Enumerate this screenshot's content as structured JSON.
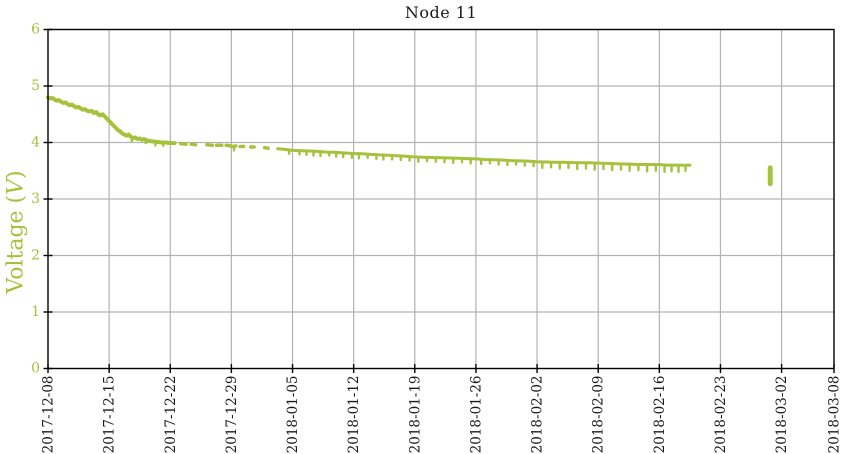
{
  "window": {
    "title": "Node 11"
  },
  "chart_data": {
    "type": "line",
    "title": "Node 11",
    "xlabel": "",
    "ylabel": "Voltage (V)",
    "ylabel_word": "Voltage",
    "ylabel_var": "V",
    "ylim": [
      0,
      6
    ],
    "yticks": [
      0,
      1,
      2,
      3,
      4,
      5,
      6
    ],
    "x_start_date": "2017-12-08",
    "x_end_date": "2018-03-08",
    "x_range_days": 90,
    "xticks": [
      {
        "label": "2017-12-08",
        "day": 0
      },
      {
        "label": "2017-12-15",
        "day": 7
      },
      {
        "label": "2017-12-22",
        "day": 14
      },
      {
        "label": "2017-12-29",
        "day": 21
      },
      {
        "label": "2018-01-05",
        "day": 28
      },
      {
        "label": "2018-01-12",
        "day": 35
      },
      {
        "label": "2018-01-19",
        "day": 42
      },
      {
        "label": "2018-01-26",
        "day": 49
      },
      {
        "label": "2018-02-02",
        "day": 56
      },
      {
        "label": "2018-02-09",
        "day": 63
      },
      {
        "label": "2018-02-16",
        "day": 70
      },
      {
        "label": "2018-02-23",
        "day": 77
      },
      {
        "label": "2018-03-02",
        "day": 84
      },
      {
        "label": "2018-03-08",
        "day": 90
      }
    ],
    "grid": true,
    "legend_position": "none",
    "line_color": "#a6c23c",
    "grid_color": "#b3b3b3",
    "axis_color": "#000000",
    "title_color": "#1a1a1a",
    "y_tick_label_color": "#a6c23c",
    "x_tick_label_color": "#1a1a1a",
    "segments": [
      {
        "w": 4,
        "points": [
          [
            0,
            4.8
          ],
          [
            0.25,
            4.78
          ],
          [
            0.5,
            4.79
          ],
          [
            0.75,
            4.76
          ],
          [
            1,
            4.74
          ],
          [
            1.25,
            4.75
          ],
          [
            1.5,
            4.72
          ],
          [
            1.75,
            4.7
          ],
          [
            2,
            4.71
          ],
          [
            2.25,
            4.68
          ],
          [
            2.5,
            4.66
          ],
          [
            2.75,
            4.67
          ],
          [
            3,
            4.64
          ],
          [
            3.25,
            4.62
          ],
          [
            3.5,
            4.63
          ],
          [
            3.75,
            4.6
          ],
          [
            4,
            4.58
          ],
          [
            4.25,
            4.59
          ],
          [
            4.5,
            4.56
          ],
          [
            4.75,
            4.55
          ],
          [
            5,
            4.56
          ],
          [
            5.25,
            4.52
          ],
          [
            5.5,
            4.54
          ],
          [
            5.75,
            4.5
          ],
          [
            6,
            4.48
          ],
          [
            6.25,
            4.5
          ],
          [
            6.5,
            4.46
          ],
          [
            6.75,
            4.42
          ],
          [
            7,
            4.38
          ],
          [
            7.25,
            4.34
          ],
          [
            7.5,
            4.3
          ],
          [
            7.75,
            4.26
          ],
          [
            8,
            4.22
          ],
          [
            8.25,
            4.2
          ],
          [
            8.5,
            4.16
          ],
          [
            8.75,
            4.14
          ],
          [
            9,
            4.12
          ],
          [
            9.25,
            4.14
          ],
          [
            9.5,
            4.1
          ],
          [
            9.75,
            4.08
          ],
          [
            10,
            4.09
          ],
          [
            10.25,
            4.06
          ],
          [
            10.5,
            4.07
          ],
          [
            10.75,
            4.05
          ],
          [
            11,
            4.06
          ],
          [
            11.5,
            4.03
          ],
          [
            12,
            4.02
          ],
          [
            12.5,
            4.01
          ],
          [
            13,
            4.0
          ],
          [
            13.5,
            4.0
          ],
          [
            14,
            3.99
          ],
          [
            14.5,
            3.99
          ]
        ]
      },
      {
        "w": 3.5,
        "points": [
          [
            15.2,
            3.98
          ],
          [
            15.8,
            3.97
          ]
        ]
      },
      {
        "w": 3.5,
        "points": [
          [
            16.4,
            3.97
          ],
          [
            16.9,
            3.96
          ]
        ]
      },
      {
        "w": 3.5,
        "points": [
          [
            18.2,
            3.96
          ],
          [
            18.8,
            3.95
          ]
        ]
      },
      {
        "w": 3.5,
        "points": [
          [
            19.3,
            3.95
          ],
          [
            19.9,
            3.95
          ]
        ]
      },
      {
        "w": 3.5,
        "points": [
          [
            20.4,
            3.95
          ],
          [
            20.9,
            3.94
          ],
          [
            21.2,
            3.93
          ],
          [
            21.5,
            3.94
          ]
        ]
      },
      {
        "w": 3.5,
        "points": [
          [
            22.0,
            3.93
          ],
          [
            22.4,
            3.93
          ]
        ]
      },
      {
        "w": 3.5,
        "points": [
          [
            23.2,
            3.92
          ],
          [
            23.6,
            3.92
          ]
        ]
      },
      {
        "w": 3.5,
        "points": [
          [
            24.8,
            3.91
          ],
          [
            25.2,
            3.9
          ]
        ]
      },
      {
        "w": 3,
        "points": [
          [
            26.3,
            3.89
          ],
          [
            27,
            3.88
          ],
          [
            28,
            3.86
          ],
          [
            29,
            3.855
          ],
          [
            30,
            3.85
          ],
          [
            31,
            3.84
          ],
          [
            32,
            3.83
          ],
          [
            33,
            3.825
          ],
          [
            34,
            3.815
          ],
          [
            35,
            3.805
          ],
          [
            36,
            3.8
          ],
          [
            37,
            3.79
          ],
          [
            38,
            3.78
          ],
          [
            39,
            3.775
          ],
          [
            40,
            3.765
          ],
          [
            41,
            3.755
          ],
          [
            42,
            3.745
          ],
          [
            43,
            3.74
          ],
          [
            44,
            3.735
          ],
          [
            45,
            3.73
          ],
          [
            46,
            3.725
          ],
          [
            47,
            3.72
          ],
          [
            48,
            3.715
          ],
          [
            49,
            3.71
          ],
          [
            50,
            3.7
          ],
          [
            51,
            3.695
          ],
          [
            52,
            3.69
          ],
          [
            53,
            3.68
          ],
          [
            54,
            3.675
          ],
          [
            55,
            3.67
          ],
          [
            56,
            3.66
          ],
          [
            57,
            3.655
          ],
          [
            58,
            3.65
          ],
          [
            59,
            3.65
          ],
          [
            60,
            3.645
          ],
          [
            61,
            3.64
          ],
          [
            62,
            3.64
          ],
          [
            63,
            3.635
          ],
          [
            64,
            3.63
          ],
          [
            65,
            3.625
          ],
          [
            66,
            3.62
          ],
          [
            67,
            3.615
          ],
          [
            68,
            3.61
          ],
          [
            69,
            3.61
          ],
          [
            70,
            3.608
          ],
          [
            71,
            3.6
          ],
          [
            72,
            3.6
          ],
          [
            73,
            3.598
          ],
          [
            73.5,
            3.6
          ]
        ]
      }
    ],
    "dips": [
      [
        9.6,
        4.1,
        4.02
      ],
      [
        11.2,
        4.05,
        3.99
      ],
      [
        12.3,
        4.01,
        3.95
      ],
      [
        13.2,
        4.0,
        3.94
      ],
      [
        21.3,
        3.93,
        3.86
      ],
      [
        27.6,
        3.87,
        3.8
      ],
      [
        28.8,
        3.86,
        3.79
      ],
      [
        29.6,
        3.85,
        3.78
      ],
      [
        30.4,
        3.845,
        3.77
      ],
      [
        31.2,
        3.84,
        3.76
      ],
      [
        32.2,
        3.83,
        3.77
      ],
      [
        33.0,
        3.825,
        3.75
      ],
      [
        33.8,
        3.815,
        3.74
      ],
      [
        34.8,
        3.81,
        3.73
      ],
      [
        35.6,
        3.8,
        3.72
      ],
      [
        36.6,
        3.79,
        3.73
      ],
      [
        37.6,
        3.785,
        3.71
      ],
      [
        38.4,
        3.78,
        3.7
      ],
      [
        39.4,
        3.77,
        3.7
      ],
      [
        40.4,
        3.76,
        3.69
      ],
      [
        41.4,
        3.75,
        3.68
      ],
      [
        42.4,
        3.745,
        3.66
      ],
      [
        43.4,
        3.74,
        3.67
      ],
      [
        44.4,
        3.735,
        3.66
      ],
      [
        45.4,
        3.73,
        3.65
      ],
      [
        46.4,
        3.72,
        3.64
      ],
      [
        47.4,
        3.715,
        3.65
      ],
      [
        48.4,
        3.71,
        3.63
      ],
      [
        49.6,
        3.705,
        3.62
      ],
      [
        50.6,
        3.7,
        3.63
      ],
      [
        51.6,
        3.69,
        3.61
      ],
      [
        52.6,
        3.685,
        3.6
      ],
      [
        53.6,
        3.68,
        3.61
      ],
      [
        54.6,
        3.67,
        3.59
      ],
      [
        55.6,
        3.665,
        3.58
      ],
      [
        56.6,
        3.66,
        3.55
      ],
      [
        57.6,
        3.65,
        3.56
      ],
      [
        58.6,
        3.65,
        3.54
      ],
      [
        59.6,
        3.645,
        3.55
      ],
      [
        60.6,
        3.64,
        3.53
      ],
      [
        61.6,
        3.64,
        3.54
      ],
      [
        62.6,
        3.635,
        3.52
      ],
      [
        63.6,
        3.63,
        3.53
      ],
      [
        64.6,
        3.625,
        3.51
      ],
      [
        65.6,
        3.62,
        3.52
      ],
      [
        66.6,
        3.615,
        3.5
      ],
      [
        67.6,
        3.61,
        3.51
      ],
      [
        68.6,
        3.61,
        3.49
      ],
      [
        69.6,
        3.605,
        3.5
      ],
      [
        70.6,
        3.6,
        3.48
      ],
      [
        71.4,
        3.6,
        3.49
      ],
      [
        72.2,
        3.6,
        3.48
      ],
      [
        73.0,
        3.598,
        3.5
      ]
    ],
    "isolated_segment": {
      "day": 82.7,
      "v_top": 3.55,
      "v_bottom": 3.27,
      "w": 5
    }
  }
}
